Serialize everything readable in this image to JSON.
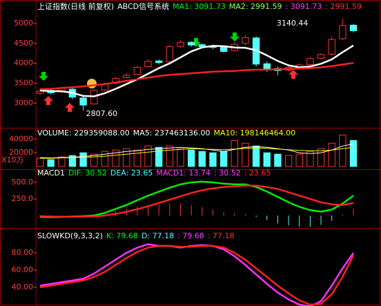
{
  "chart_data": [
    {
      "type": "candlestick",
      "header": [
        {
          "text": "上证指数(日线 前复权)",
          "color": "#ffffff"
        },
        {
          "text": "ABCD信号系统",
          "color": "#ffffff"
        },
        {
          "text": "MA1: 3091.73",
          "color": "#00ff00"
        },
        {
          "text": "MA2: 2991.59",
          "color": "#a0ff60"
        },
        {
          "text": ": 3091.73",
          "color": "#ff40ff"
        },
        {
          "text": ": 2991.59",
          "color": "#ff3030"
        }
      ],
      "open": [
        3250,
        3320,
        3280,
        3350,
        3130,
        2980,
        3330,
        3500,
        3640,
        3720,
        3920,
        4060,
        4040,
        4430,
        4530,
        4470,
        4430,
        4410,
        4320,
        4500,
        4640,
        3990,
        3870,
        3830,
        3910,
        3970,
        4130,
        4230,
        4620,
        4960
      ],
      "high": [
        3360,
        3350,
        3420,
        3380,
        3180,
        3360,
        3520,
        3660,
        3760,
        3940,
        4100,
        4100,
        4460,
        4580,
        4560,
        4500,
        4470,
        4440,
        4540,
        4720,
        4680,
        4050,
        3920,
        3950,
        4000,
        4160,
        4260,
        4680,
        5120,
        4990
      ],
      "low": [
        3200,
        3220,
        3250,
        3100,
        2807.6,
        2960,
        3300,
        3480,
        3620,
        3700,
        3900,
        3980,
        4000,
        4400,
        4420,
        4380,
        4360,
        4280,
        4300,
        4450,
        3920,
        3780,
        3700,
        3800,
        3880,
        3940,
        4100,
        4200,
        4580,
        4780
      ],
      "close": [
        3300,
        3260,
        3380,
        3150,
        2950,
        3320,
        3480,
        3620,
        3700,
        3900,
        4050,
        4020,
        4420,
        4520,
        4460,
        4420,
        4400,
        4300,
        4480,
        4650,
        3980,
        3860,
        3820,
        3900,
        3960,
        4120,
        4220,
        4600,
        4950,
        4820
      ],
      "up_color": "#ff3232",
      "down_color": "#54fcfc",
      "series": [
        {
          "color": "#ffffff",
          "values": [
            3320,
            3300,
            3300,
            3260,
            3180,
            3170,
            3250,
            3360,
            3480,
            3600,
            3740,
            3880,
            4000,
            4150,
            4300,
            4400,
            4440,
            4430,
            4400,
            4390,
            4330,
            4200,
            4060,
            3950,
            3900,
            3920,
            3990,
            4100,
            4280,
            4450
          ]
        },
        {
          "color": "#ff2020",
          "values": [
            3350,
            3360,
            3380,
            3400,
            3420,
            3450,
            3480,
            3520,
            3560,
            3600,
            3640,
            3680,
            3710,
            3730,
            3750,
            3770,
            3790,
            3800,
            3810,
            3830,
            3840,
            3840,
            3850,
            3860,
            3870,
            3880,
            3900,
            3930,
            3970,
            4010
          ]
        }
      ],
      "annotations": [
        {
          "text": "3140.44",
          "index": 28
        },
        {
          "text": "2807.60",
          "index": 4
        }
      ],
      "ylim": [
        2380,
        5280
      ],
      "yticks": [
        3000,
        3500,
        4000,
        4500,
        5000
      ]
    },
    {
      "type": "bar",
      "header": [
        {
          "text": "VOLUME: 229359088.00",
          "color": "#ffffff"
        },
        {
          "text": "MA5: 237463136.00",
          "color": "#ffffff"
        },
        {
          "text": "MA10: 198146464.00",
          "color": "#ffff00"
        }
      ],
      "unit": "X10万",
      "values": [
        12000,
        10000,
        14000,
        16000,
        20000,
        18000,
        22000,
        24000,
        26000,
        24000,
        30000,
        28000,
        30000,
        26000,
        24000,
        22000,
        20000,
        22000,
        38000,
        34000,
        30000,
        20000,
        18000,
        16000,
        18000,
        22000,
        26000,
        34000,
        46000,
        38000
      ],
      "series": [
        {
          "color": "#ffffff",
          "values": [
            13000,
            12500,
            13000,
            13500,
            14500,
            16000,
            18000,
            20000,
            22000,
            23000,
            25000,
            26000,
            27000,
            28000,
            27000,
            26000,
            24000,
            22000,
            25000,
            28000,
            29000,
            28000,
            26000,
            24000,
            20000,
            19000,
            20000,
            24000,
            30000,
            33000
          ]
        },
        {
          "color": "#ffff00",
          "values": [
            12000,
            12000,
            12500,
            13000,
            13500,
            14000,
            15000,
            16500,
            18000,
            19500,
            21000,
            22500,
            24000,
            25000,
            26000,
            25500,
            25000,
            24500,
            25500,
            26500,
            27000,
            26500,
            25500,
            24500,
            23500,
            23000,
            23000,
            24000,
            26000,
            28000
          ]
        }
      ],
      "ylim": [
        0,
        44400
      ],
      "yticks": [
        20000,
        40000
      ]
    },
    {
      "type": "line",
      "header": [
        {
          "text": "MACD1",
          "color": "#ffffff"
        },
        {
          "text": "DIF: 30.52",
          "color": "#00ff00"
        },
        {
          "text": "DEA: 23.65",
          "color": "#54fcfc"
        },
        {
          "text": "MACD1: 13.74",
          "color": "#ff40ff"
        },
        {
          "text": ": 30.52",
          "color": "#ff40ff"
        },
        {
          "text": ": 23.65",
          "color": "#ff3030"
        }
      ],
      "bars": {
        "color": "#ff3232",
        "neg_color": "#54fcfc",
        "values": [
          -10,
          -10,
          -2,
          3,
          6,
          12,
          40,
          75,
          105,
          135,
          160,
          170,
          180,
          180,
          160,
          130,
          90,
          50,
          30,
          20,
          -20,
          -70,
          -120,
          -150,
          -170,
          -170,
          -140,
          -80,
          20,
          110
        ]
      },
      "series": [
        {
          "color": "#00ee00",
          "values": [
            -20,
            -25,
            -20,
            -15,
            -10,
            0,
            40,
            100,
            160,
            230,
            300,
            360,
            420,
            470,
            500,
            510,
            500,
            480,
            470,
            470,
            430,
            360,
            280,
            200,
            130,
            80,
            60,
            90,
            180,
            300
          ]
        },
        {
          "color": "#ff2020",
          "values": [
            -10,
            -15,
            -18,
            -18,
            -16,
            -12,
            0,
            25,
            55,
            95,
            140,
            190,
            240,
            290,
            340,
            380,
            410,
            430,
            440,
            450,
            450,
            430,
            400,
            350,
            300,
            250,
            200,
            170,
            160,
            190
          ]
        }
      ],
      "ylim": [
        -187,
        583
      ],
      "yticks": [
        {
          "value": 250,
          "label": "250.0"
        },
        {
          "value": 500,
          "label": "500.0"
        }
      ]
    },
    {
      "type": "line",
      "header": [
        {
          "text": "SLOWKD(9,3,3,2)",
          "color": "#ffffff"
        },
        {
          "text": "K: 79.68",
          "color": "#00ff00"
        },
        {
          "text": "D: 77.18",
          "color": "#54fcfc"
        },
        {
          "text": ": 79.68",
          "color": "#ff40ff"
        },
        {
          "text": ": 77.18",
          "color": "#ff3030"
        }
      ],
      "series": [
        {
          "color": "#ff30ff",
          "values": [
            42,
            44,
            46,
            48,
            50,
            56,
            64,
            72,
            80,
            86,
            90,
            88,
            88,
            86,
            88,
            89,
            88,
            84,
            76,
            66,
            55,
            44,
            34,
            26,
            20,
            18,
            24,
            42,
            62,
            79.68
          ]
        },
        {
          "color": "#ff2020",
          "values": [
            40,
            42,
            44,
            46,
            48,
            52,
            58,
            66,
            74,
            81,
            86,
            88,
            88,
            87,
            87,
            88,
            88,
            86,
            80,
            72,
            62,
            52,
            42,
            33,
            25,
            20,
            21,
            32,
            52,
            77.18
          ]
        }
      ],
      "ylim": [
        18.4,
        99.2
      ],
      "yticks": [
        {
          "value": 40,
          "label": "40.00"
        },
        {
          "value": 60,
          "label": "60.00"
        },
        {
          "value": 80,
          "label": "80.00"
        }
      ]
    }
  ]
}
